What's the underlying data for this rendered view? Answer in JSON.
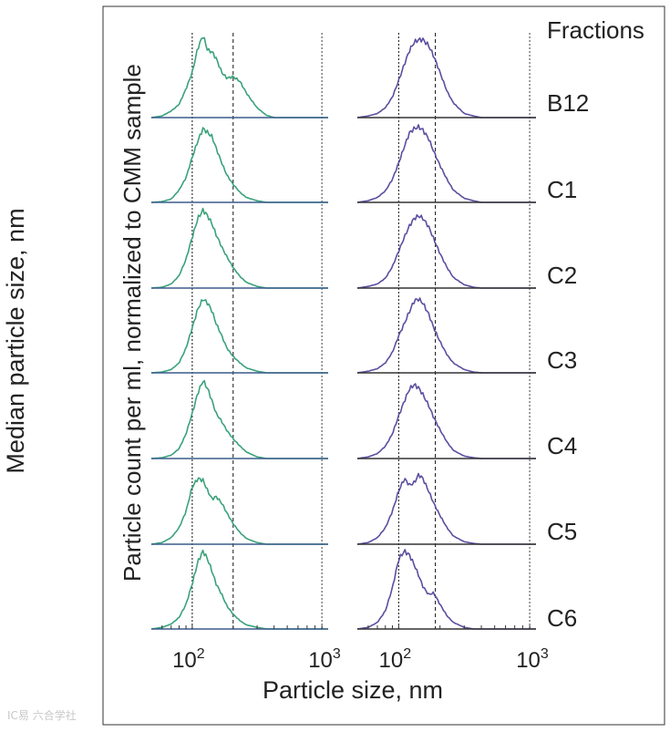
{
  "outer_ylabel": "Median particle size, nm",
  "chart_data": {
    "type": "line",
    "title": "",
    "ylabel": "Particle count per ml, normalized to CMM sample",
    "xlabel": "Particle size, nm",
    "xscale": "log",
    "xlim": [
      50,
      1000
    ],
    "xticks": [
      {
        "value": 100,
        "base": "10",
        "exp": "2"
      },
      {
        "value": 1000,
        "base": "10",
        "exp": "3"
      }
    ],
    "legend_title": "Fractions",
    "fractions": [
      "B12",
      "C1",
      "C2",
      "C3",
      "C4",
      "C5",
      "C6"
    ],
    "reference_lines": {
      "left_panel_nm": [
        100,
        200,
        900
      ],
      "right_panel_nm": [
        100,
        185,
        900
      ]
    },
    "colors": {
      "left": "#3aa27a",
      "right": "#5a4fa0",
      "baseline_left": "#3b5c8c",
      "baseline_right": "#333333"
    },
    "x_nm": [
      50,
      60,
      70,
      80,
      90,
      100,
      110,
      120,
      130,
      140,
      150,
      165,
      180,
      200,
      225,
      250,
      300,
      350,
      400,
      500,
      600,
      800,
      1000
    ],
    "series": [
      {
        "panel": "left",
        "name": "B12",
        "values": [
          0.0,
          0.02,
          0.08,
          0.16,
          0.35,
          0.55,
          0.85,
          1.0,
          0.82,
          0.8,
          0.72,
          0.55,
          0.48,
          0.5,
          0.44,
          0.3,
          0.12,
          0.03,
          0.0,
          0.0,
          0.0,
          0.0,
          0.0
        ]
      },
      {
        "panel": "left",
        "name": "C1",
        "values": [
          0.0,
          0.01,
          0.04,
          0.15,
          0.3,
          0.55,
          0.75,
          0.9,
          0.85,
          0.8,
          0.66,
          0.48,
          0.33,
          0.22,
          0.12,
          0.06,
          0.02,
          0.0,
          0.0,
          0.0,
          0.0,
          0.0,
          0.0
        ]
      },
      {
        "panel": "left",
        "name": "C2",
        "values": [
          0.0,
          0.01,
          0.05,
          0.15,
          0.35,
          0.62,
          0.85,
          0.95,
          0.88,
          0.78,
          0.65,
          0.5,
          0.38,
          0.25,
          0.14,
          0.07,
          0.02,
          0.0,
          0.0,
          0.0,
          0.0,
          0.0,
          0.0
        ]
      },
      {
        "panel": "left",
        "name": "C3",
        "values": [
          0.0,
          0.01,
          0.04,
          0.12,
          0.3,
          0.55,
          0.78,
          0.9,
          0.85,
          0.75,
          0.6,
          0.45,
          0.3,
          0.2,
          0.12,
          0.06,
          0.02,
          0.0,
          0.0,
          0.0,
          0.0,
          0.0,
          0.0
        ]
      },
      {
        "panel": "left",
        "name": "C4",
        "values": [
          0.0,
          0.01,
          0.04,
          0.12,
          0.3,
          0.55,
          0.8,
          0.95,
          0.85,
          0.7,
          0.55,
          0.45,
          0.34,
          0.24,
          0.15,
          0.08,
          0.02,
          0.0,
          0.0,
          0.0,
          0.0,
          0.0,
          0.0
        ]
      },
      {
        "panel": "left",
        "name": "C5",
        "values": [
          0.0,
          0.02,
          0.08,
          0.2,
          0.4,
          0.7,
          0.8,
          0.78,
          0.65,
          0.55,
          0.58,
          0.5,
          0.38,
          0.25,
          0.14,
          0.07,
          0.02,
          0.0,
          0.0,
          0.0,
          0.0,
          0.0,
          0.0
        ]
      },
      {
        "panel": "left",
        "name": "C6",
        "values": [
          0.0,
          0.02,
          0.06,
          0.14,
          0.3,
          0.55,
          0.82,
          0.95,
          0.85,
          0.7,
          0.55,
          0.42,
          0.28,
          0.18,
          0.1,
          0.05,
          0.02,
          0.0,
          0.0,
          0.0,
          0.0,
          0.0,
          0.0
        ]
      },
      {
        "panel": "right",
        "name": "B12",
        "values": [
          0.0,
          0.02,
          0.05,
          0.12,
          0.25,
          0.45,
          0.65,
          0.82,
          0.92,
          0.95,
          0.95,
          0.88,
          0.75,
          0.55,
          0.32,
          0.18,
          0.05,
          0.02,
          0.0,
          0.0,
          0.0,
          0.0,
          0.0
        ]
      },
      {
        "panel": "right",
        "name": "C1",
        "values": [
          0.0,
          0.02,
          0.06,
          0.14,
          0.28,
          0.48,
          0.68,
          0.85,
          0.9,
          0.92,
          0.88,
          0.78,
          0.62,
          0.45,
          0.28,
          0.15,
          0.05,
          0.02,
          0.0,
          0.0,
          0.0,
          0.0,
          0.0
        ]
      },
      {
        "panel": "right",
        "name": "C2",
        "values": [
          0.0,
          0.02,
          0.05,
          0.12,
          0.26,
          0.45,
          0.62,
          0.76,
          0.85,
          0.88,
          0.85,
          0.75,
          0.6,
          0.42,
          0.25,
          0.13,
          0.04,
          0.01,
          0.0,
          0.0,
          0.0,
          0.0,
          0.0
        ]
      },
      {
        "panel": "right",
        "name": "C3",
        "values": [
          0.0,
          0.02,
          0.05,
          0.12,
          0.25,
          0.45,
          0.6,
          0.75,
          0.88,
          0.9,
          0.85,
          0.72,
          0.55,
          0.38,
          0.22,
          0.12,
          0.04,
          0.01,
          0.0,
          0.0,
          0.0,
          0.0,
          0.0
        ]
      },
      {
        "panel": "right",
        "name": "C4",
        "values": [
          0.0,
          0.02,
          0.06,
          0.15,
          0.3,
          0.52,
          0.7,
          0.85,
          0.9,
          0.86,
          0.78,
          0.65,
          0.5,
          0.35,
          0.2,
          0.1,
          0.03,
          0.01,
          0.0,
          0.0,
          0.0,
          0.0,
          0.0
        ]
      },
      {
        "panel": "right",
        "name": "C5",
        "values": [
          0.0,
          0.02,
          0.08,
          0.2,
          0.4,
          0.65,
          0.8,
          0.72,
          0.75,
          0.85,
          0.8,
          0.65,
          0.5,
          0.35,
          0.2,
          0.1,
          0.03,
          0.01,
          0.0,
          0.0,
          0.0,
          0.0,
          0.0
        ]
      },
      {
        "panel": "right",
        "name": "C6",
        "values": [
          0.0,
          0.02,
          0.08,
          0.22,
          0.5,
          0.85,
          0.95,
          0.9,
          0.78,
          0.65,
          0.52,
          0.42,
          0.44,
          0.3,
          0.16,
          0.08,
          0.02,
          0.0,
          0.0,
          0.0,
          0.0,
          0.0,
          0.0
        ]
      }
    ]
  },
  "watermark": "IC易 六合学社"
}
